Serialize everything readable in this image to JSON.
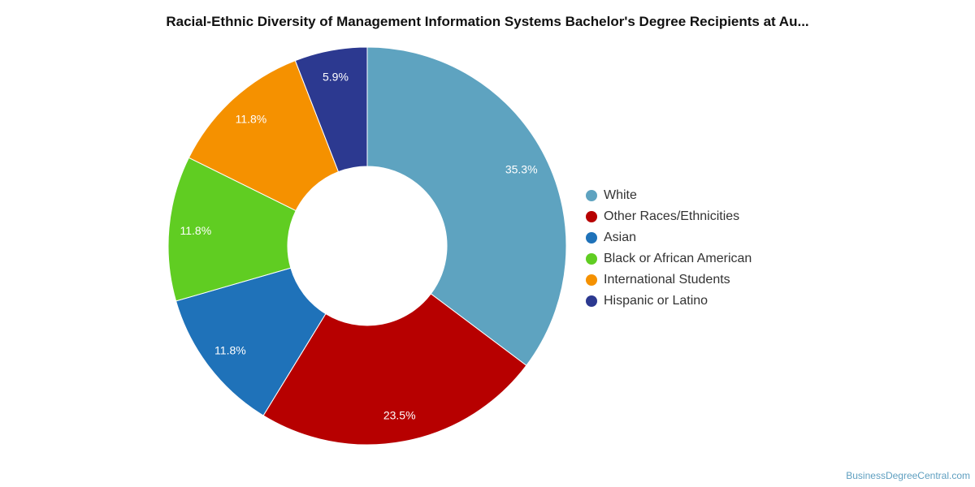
{
  "chart_data": {
    "type": "pie",
    "title": "Racial-Ethnic Diversity of Management Information Systems Bachelor's Degree Recipients at Au...",
    "donut": true,
    "categories": [
      "White",
      "Other Races/Ethnicities",
      "Asian",
      "Black or African American",
      "International Students",
      "Hispanic or Latino"
    ],
    "values": [
      35.3,
      23.5,
      11.8,
      11.8,
      11.8,
      5.9
    ],
    "data_labels": [
      "35.3%",
      "23.5%",
      "11.8%",
      "11.8%",
      "11.8%",
      "5.9%"
    ],
    "colors": [
      "#5ea3c0",
      "#b70000",
      "#1f72b9",
      "#60cd22",
      "#f59100",
      "#2c3990"
    ],
    "legend_position": "right"
  },
  "watermark": "BusinessDegreeCentral.com"
}
